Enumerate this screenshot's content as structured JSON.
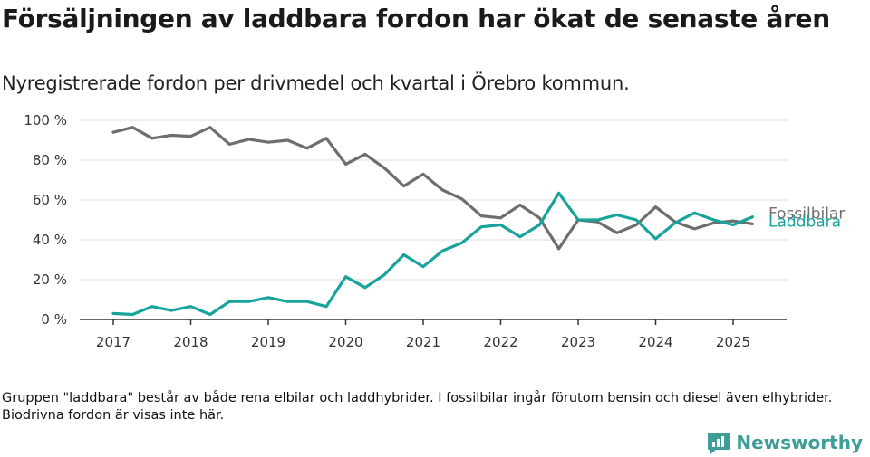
{
  "title": "Försäljningen av laddbara fordon har ökat de senaste åren",
  "subtitle": "Nyregistrerade fordon per drivmedel och kvartal i Örebro kommun.",
  "footnote": "Gruppen \"laddbara\" består av både rena elbilar och laddhybrider. I fossilbilar ingår förutom bensin och diesel även elhybrider. Biodrivna fordon är visas inte här.",
  "brand": {
    "name": "Newsworthy",
    "icon": "newsworthy-logo-icon",
    "color": "#3e9e97"
  },
  "chart_data": {
    "type": "line",
    "x": [
      "2017-Q1",
      "2017-Q2",
      "2017-Q3",
      "2017-Q4",
      "2018-Q1",
      "2018-Q2",
      "2018-Q3",
      "2018-Q4",
      "2019-Q1",
      "2019-Q2",
      "2019-Q3",
      "2019-Q4",
      "2020-Q1",
      "2020-Q2",
      "2020-Q3",
      "2020-Q4",
      "2021-Q1",
      "2021-Q2",
      "2021-Q3",
      "2021-Q4",
      "2022-Q1",
      "2022-Q2",
      "2022-Q3",
      "2022-Q4",
      "2023-Q1",
      "2023-Q2",
      "2023-Q3",
      "2023-Q4",
      "2024-Q1",
      "2024-Q2",
      "2024-Q3",
      "2024-Q4",
      "2025-Q1",
      "2025-Q2"
    ],
    "x_ticks": [
      "2017",
      "2018",
      "2019",
      "2020",
      "2021",
      "2022",
      "2023",
      "2024",
      "2025"
    ],
    "y_ticks": [
      "0 %",
      "20 %",
      "40 %",
      "60 %",
      "80 %",
      "100 %"
    ],
    "ylim": [
      0,
      100
    ],
    "y_unit": "%",
    "grid": true,
    "series": [
      {
        "name": "Fossilbilar",
        "color": "#6e6e6e",
        "values": [
          94,
          96.5,
          91,
          92.5,
          92,
          96.5,
          88,
          90.5,
          89,
          90,
          86,
          91,
          78,
          83,
          76,
          67,
          73,
          65,
          60.5,
          52,
          51,
          57.5,
          51,
          35.5,
          50,
          49,
          43.5,
          47.5,
          56.5,
          49,
          45.5,
          48.5,
          49.5,
          48
        ]
      },
      {
        "name": "Laddbara",
        "color": "#17a39b",
        "values": [
          3,
          2.5,
          6.5,
          4.5,
          6.5,
          2.5,
          9,
          9,
          11,
          9,
          9,
          6.5,
          21.5,
          16,
          22.5,
          32.5,
          26.5,
          34.5,
          38.5,
          46.5,
          47.5,
          41.5,
          47.5,
          63.5,
          50,
          50,
          52.5,
          50,
          40.5,
          48.5,
          53.5,
          50,
          47.5,
          51.5
        ]
      }
    ]
  }
}
